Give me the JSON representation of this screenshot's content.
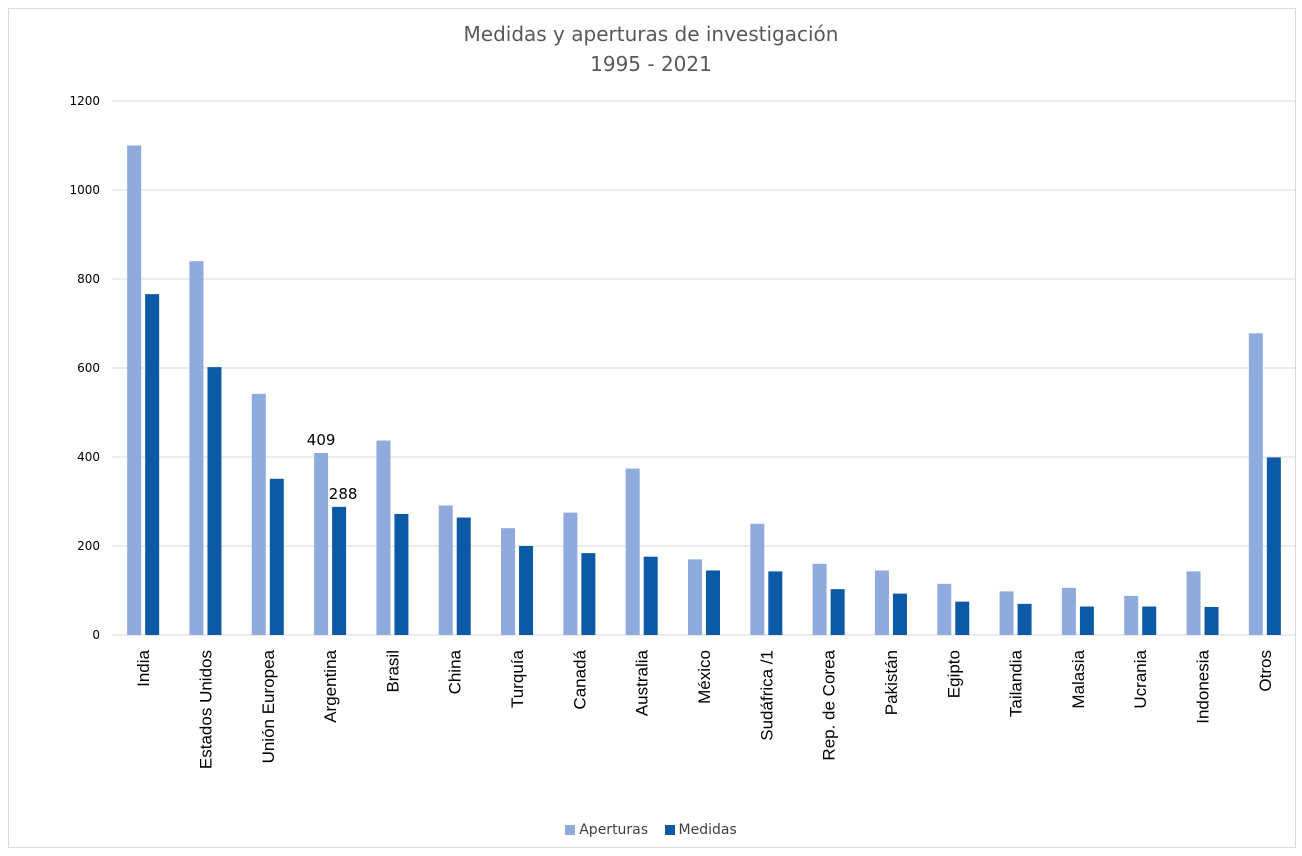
{
  "chart_data": {
    "type": "bar",
    "title": "Medidas y aperturas de investigación",
    "subtitle": "1995 - 2021",
    "categories": [
      "India",
      "Estados Unidos",
      "Unión Europea",
      "Argentina",
      "Brasil",
      "China",
      "Turquía",
      "Canadá",
      "Australia",
      "México",
      "Sudáfrica /1",
      "Rep. de Corea",
      "Pakistán",
      "Egipto",
      "Tailandia",
      "Malasia",
      "Ucrania",
      "Indonesia",
      "Otros"
    ],
    "series": [
      {
        "name": "Aperturas",
        "color": "#8faadc",
        "values": [
          1100,
          840,
          542,
          409,
          437,
          291,
          240,
          275,
          374,
          170,
          250,
          160,
          145,
          115,
          98,
          106,
          88,
          143,
          678
        ]
      },
      {
        "name": "Medidas",
        "color": "#0c5aa6",
        "values": [
          766,
          602,
          351,
          288,
          272,
          264,
          200,
          184,
          176,
          145,
          143,
          103,
          93,
          75,
          70,
          64,
          64,
          63,
          399
        ]
      }
    ],
    "data_labels": [
      {
        "category": "Argentina",
        "series": "Aperturas",
        "text": "409"
      },
      {
        "category": "Argentina",
        "series": "Medidas",
        "text": "288"
      }
    ],
    "yticks": [
      "0",
      "200",
      "400",
      "600",
      "800",
      "1000",
      "1200"
    ],
    "ylim": [
      0,
      1200
    ],
    "grid": true,
    "legend": "bottom"
  }
}
